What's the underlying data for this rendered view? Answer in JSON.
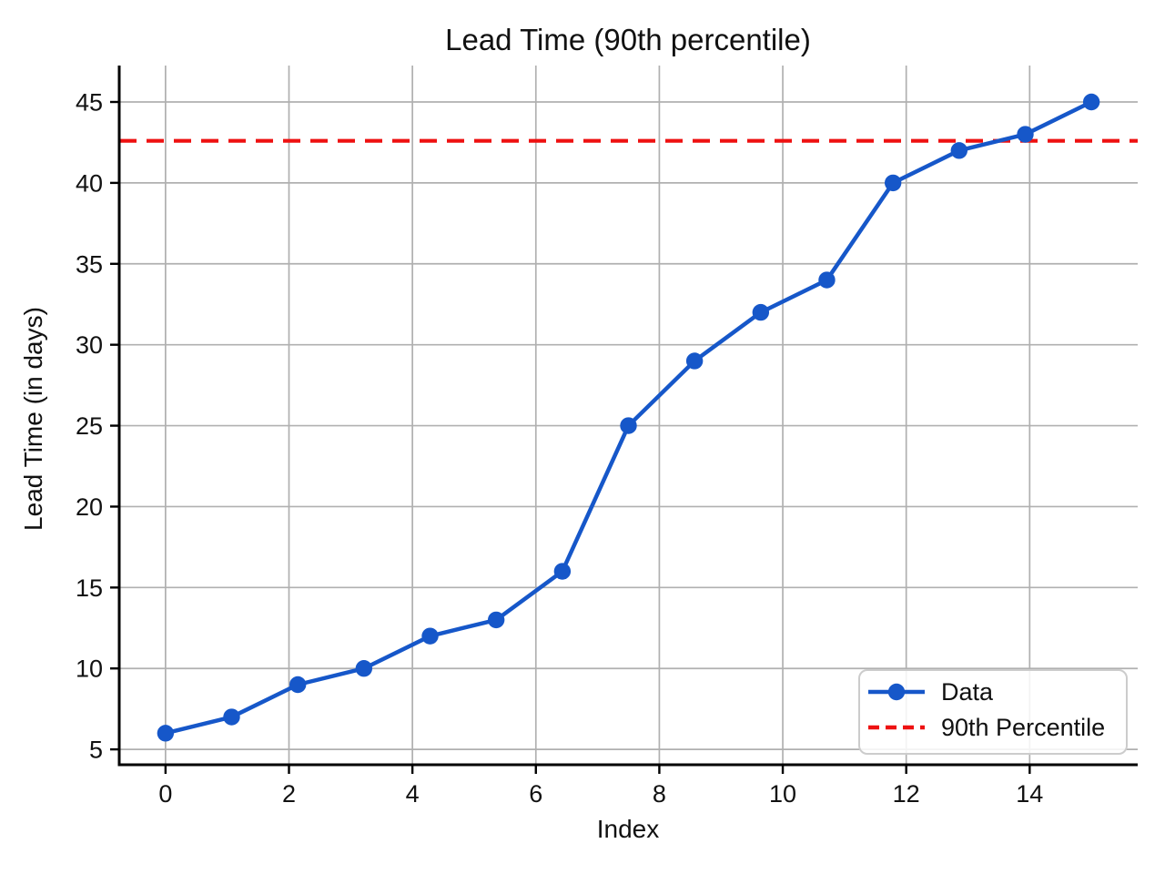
{
  "chart_data": {
    "type": "line",
    "title": "Lead Time (90th percentile)",
    "xlabel": "Index",
    "ylabel": "Lead Time (in days)",
    "xlim": [
      -0.75,
      15.75
    ],
    "ylim": [
      4.05,
      47.25
    ],
    "x_ticks": [
      0,
      2,
      4,
      6,
      8,
      10,
      12,
      14
    ],
    "y_ticks": [
      5,
      10,
      15,
      20,
      25,
      30,
      35,
      40,
      45
    ],
    "grid": true,
    "grid_color": "#b0b0b0",
    "legend_position": "lower right",
    "series": [
      {
        "name": "Data",
        "style": "solid-with-markers",
        "color": "#1657c9",
        "x": [
          0,
          1.071,
          2.143,
          3.214,
          4.286,
          5.357,
          6.429,
          7.5,
          8.571,
          9.643,
          10.714,
          11.786,
          12.857,
          13.929,
          15
        ],
        "y": [
          6,
          7,
          9,
          10,
          12,
          13,
          16,
          25,
          29,
          32,
          34,
          40,
          42,
          43,
          45
        ]
      },
      {
        "name": "90th Percentile",
        "style": "dashed-hline",
        "color": "#ee1111",
        "value": 42.6
      }
    ]
  }
}
